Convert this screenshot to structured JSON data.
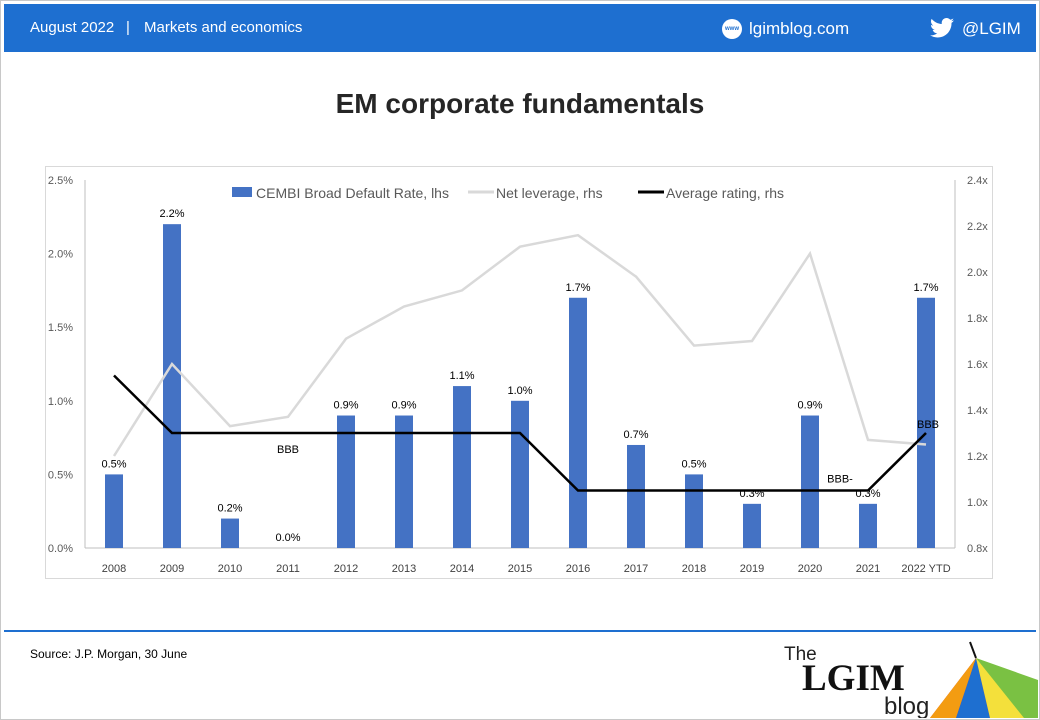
{
  "header": {
    "date": "August 2022",
    "separator": "|",
    "section": "Markets and economics",
    "site_icon_label": "www",
    "site": "lgimblog.com",
    "handle": "@LGIM",
    "brand_color": "#1e6fd0"
  },
  "title": "EM corporate fundamentals",
  "source": "Source: J.P. Morgan, 30 June",
  "logo": {
    "the": "The",
    "name": "LGIM",
    "blog": "blog"
  },
  "chart_data": {
    "type": "bar",
    "categories": [
      "2008",
      "2009",
      "2010",
      "2011",
      "2012",
      "2013",
      "2014",
      "2015",
      "2016",
      "2017",
      "2018",
      "2019",
      "2020",
      "2021",
      "2022 YTD"
    ],
    "y_left": {
      "ylim": [
        0,
        2.5
      ],
      "ticks": [
        0.0,
        0.5,
        1.0,
        1.5,
        2.0,
        2.5
      ],
      "tick_labels": [
        "0.0%",
        "0.5%",
        "1.0%",
        "1.5%",
        "2.0%",
        "2.5%"
      ]
    },
    "y_right": {
      "ylim": [
        0.8,
        2.4
      ],
      "ticks": [
        0.8,
        1.0,
        1.2,
        1.4,
        1.6,
        1.8,
        2.0,
        2.2,
        2.4
      ],
      "tick_labels": [
        "0.8x",
        "1.0x",
        "1.2x",
        "1.4x",
        "1.6x",
        "1.8x",
        "2.0x",
        "2.2x",
        "2.4x"
      ]
    },
    "series": [
      {
        "name": "CEMBI Broad Default Rate, lhs",
        "kind": "bar",
        "axis": "left",
        "color": "#4472c4",
        "values": [
          0.5,
          2.2,
          0.2,
          0.0,
          0.9,
          0.9,
          1.1,
          1.0,
          1.7,
          0.7,
          0.5,
          0.3,
          0.9,
          0.3,
          1.7
        ],
        "labels": [
          "0.5%",
          "2.2%",
          "0.2%",
          "0.0%",
          "0.9%",
          "0.9%",
          "1.1%",
          "1.0%",
          "1.7%",
          "0.7%",
          "0.5%",
          "0.3%",
          "0.9%",
          "0.3%",
          "1.7%"
        ]
      },
      {
        "name": "Net leverage, rhs",
        "kind": "line",
        "axis": "right",
        "color": "#d9d9d9",
        "values": [
          1.2,
          1.6,
          1.33,
          1.37,
          1.71,
          1.85,
          1.92,
          2.11,
          2.16,
          1.98,
          1.68,
          1.7,
          2.08,
          1.27,
          1.25
        ]
      },
      {
        "name": "Average rating, rhs",
        "kind": "line",
        "axis": "right",
        "color": "#000000",
        "values": [
          1.55,
          1.3,
          1.3,
          1.3,
          1.3,
          1.3,
          1.3,
          1.3,
          1.05,
          1.05,
          1.05,
          1.05,
          1.05,
          1.05,
          1.3
        ]
      }
    ],
    "annotations": [
      {
        "text": "BBB",
        "category": "2011",
        "value": 1.3,
        "axis": "right"
      },
      {
        "text": "BBB-",
        "category": "2020",
        "value": 1.05,
        "axis": "right"
      },
      {
        "text": "BBB",
        "category": "2022 YTD",
        "value": 1.3,
        "axis": "right"
      }
    ],
    "legend": "top"
  }
}
